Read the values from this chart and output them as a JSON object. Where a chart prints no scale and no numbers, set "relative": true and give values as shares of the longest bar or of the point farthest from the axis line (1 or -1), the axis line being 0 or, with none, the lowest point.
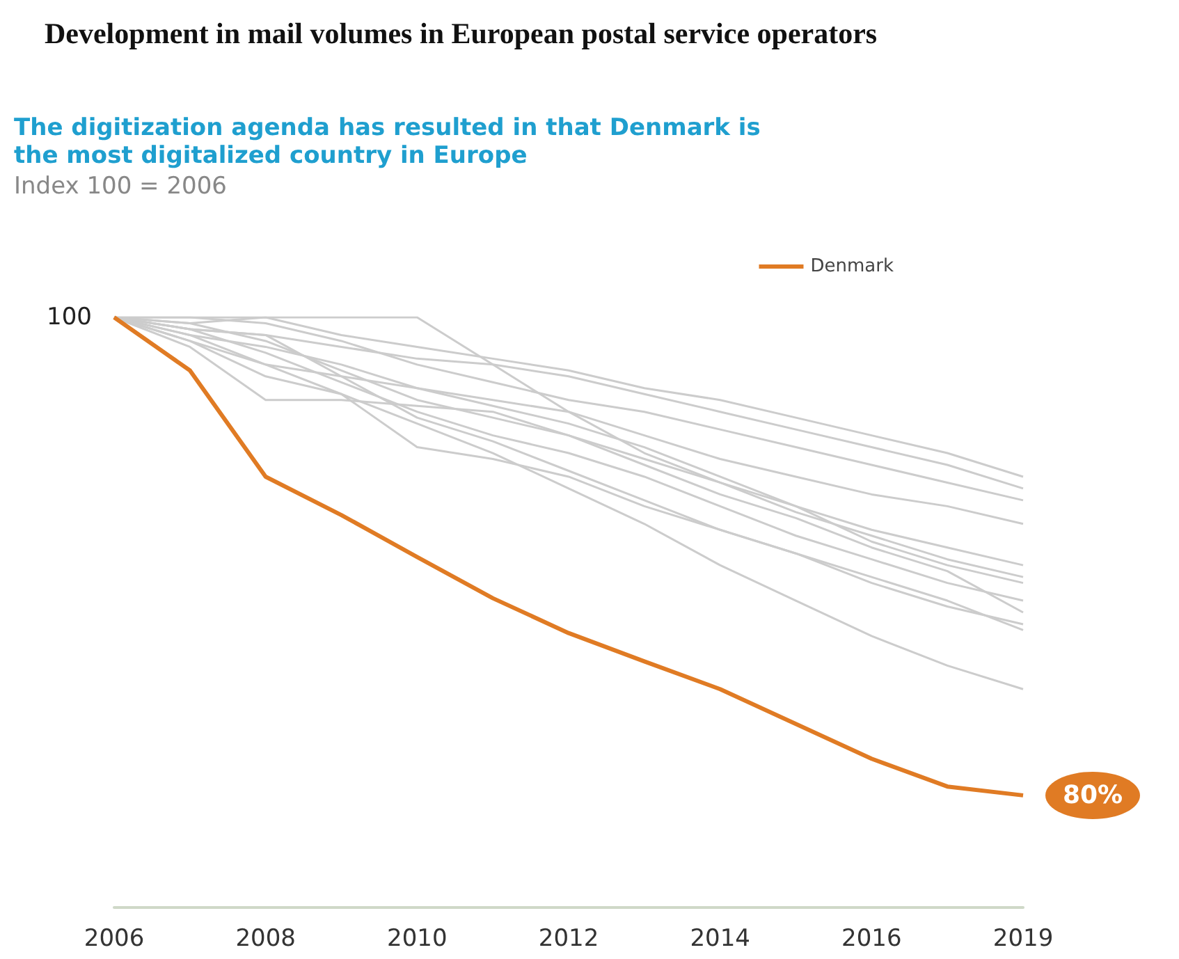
{
  "chart_data": {
    "type": "line",
    "title": "Development in mail volumes in European postal service operators",
    "subtitle": "The digitization agenda has resulted in that Denmark is the most digitalized country in Europe",
    "annotations": [
      "Index 100 = 2006",
      {
        "text": "100",
        "x": "2006",
        "y": 1
      },
      {
        "text": "80%",
        "x": "2019",
        "y": 0.19
      }
    ],
    "categories": [
      "2006",
      null,
      "2008",
      null,
      "2010",
      null,
      "2012",
      null,
      "2014",
      null,
      "2016",
      null,
      "2019"
    ],
    "relative": true,
    "legend": "top right",
    "marker": "none",
    "grid": false,
    "series": [
      {
        "name": "Denmark",
        "color": "#e07b24",
        "values": [
          1,
          0.91,
          0.73,
          0.665,
          0.594,
          0.524,
          0.465,
          0.417,
          0.37,
          0.311,
          0.252,
          0.205,
          0.19
        ]
      },
      {
        "color": "#cccccc",
        "values": [
          1,
          0.99,
          1.0,
          0.97,
          0.95,
          0.93,
          0.91,
          0.88,
          0.86,
          0.83,
          0.8,
          0.77,
          0.73
        ]
      },
      {
        "color": "#cccccc",
        "values": [
          1,
          0.98,
          0.97,
          0.95,
          0.93,
          0.92,
          0.9,
          0.87,
          0.84,
          0.81,
          0.78,
          0.75,
          0.71
        ]
      },
      {
        "color": "#cccccc",
        "values": [
          1,
          1.0,
          0.99,
          0.96,
          0.92,
          0.89,
          0.86,
          0.84,
          0.81,
          0.78,
          0.75,
          0.72,
          0.69
        ]
      },
      {
        "color": "#cccccc",
        "values": [
          1,
          0.97,
          0.95,
          0.92,
          0.88,
          0.86,
          0.84,
          0.8,
          0.76,
          0.73,
          0.7,
          0.68,
          0.65
        ]
      },
      {
        "color": "#cccccc",
        "values": [
          1,
          0.99,
          0.96,
          0.91,
          0.86,
          0.83,
          0.8,
          0.76,
          0.72,
          0.68,
          0.64,
          0.61,
          0.58
        ]
      },
      {
        "color": "#cccccc",
        "values": [
          1,
          1.0,
          1.0,
          1.0,
          1.0,
          0.92,
          0.84,
          0.77,
          0.72,
          0.67,
          0.63,
          0.59,
          0.56
        ]
      },
      {
        "color": "#cccccc",
        "values": [
          1,
          0.96,
          0.92,
          0.9,
          0.88,
          0.85,
          0.82,
          0.78,
          0.73,
          0.68,
          0.62,
          0.58,
          0.55
        ]
      },
      {
        "color": "#cccccc",
        "values": [
          1,
          0.98,
          0.94,
          0.89,
          0.84,
          0.8,
          0.77,
          0.73,
          0.68,
          0.63,
          0.59,
          0.55,
          0.52
        ]
      },
      {
        "color": "#cccccc",
        "values": [
          1,
          0.95,
          0.86,
          0.86,
          0.85,
          0.84,
          0.8,
          0.75,
          0.7,
          0.66,
          0.61,
          0.57,
          0.5
        ]
      },
      {
        "color": "#cccccc",
        "values": [
          1,
          0.98,
          0.97,
          0.9,
          0.83,
          0.79,
          0.74,
          0.69,
          0.64,
          0.6,
          0.55,
          0.51,
          0.48
        ]
      },
      {
        "color": "#cccccc",
        "values": [
          1,
          0.96,
          0.9,
          0.87,
          0.78,
          0.76,
          0.73,
          0.68,
          0.64,
          0.6,
          0.56,
          0.52,
          0.47
        ]
      },
      {
        "color": "#cccccc",
        "values": [
          1,
          0.97,
          0.92,
          0.87,
          0.82,
          0.77,
          0.71,
          0.65,
          0.58,
          0.52,
          0.46,
          0.41,
          0.37
        ]
      }
    ]
  }
}
